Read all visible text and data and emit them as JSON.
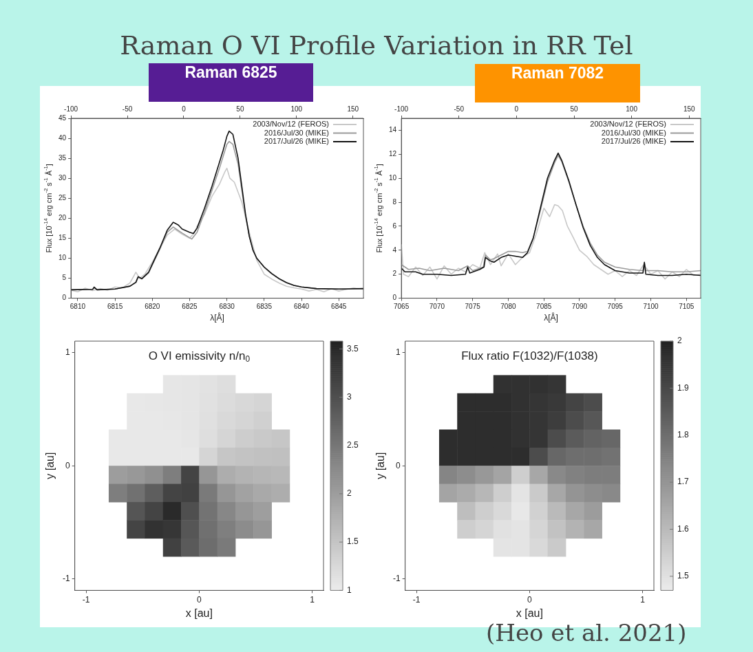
{
  "chart_data": [
    {
      "type": "line",
      "title": "Raman O VI Profile Variation in RR Tel",
      "subtitle": "Raman 6825",
      "xlabel": "λ[Å]",
      "ylabel": "Flux [10$^{-14}$ erg cm$^{-2}$ s$^{-1}$ Å$^{-1}$]",
      "legend": "top right",
      "xlim": [
        6809.1,
        6848.3
      ],
      "xticks": [
        6810,
        6815,
        6820,
        6825,
        6830,
        6835,
        6840,
        6845
      ],
      "x2lim": [
        -100,
        159.3
      ],
      "x2ticks": [
        -100,
        -50,
        0,
        50,
        100,
        150
      ],
      "ylim": [
        0,
        45
      ],
      "yticks": [
        0,
        5,
        10,
        15,
        20,
        25,
        30,
        35,
        40,
        45
      ],
      "series": [
        {
          "name": "2003/Nov/12 (FEROS)",
          "color": "#c8c8c8",
          "x": [
            6809.1,
            6810,
            6811,
            6812,
            6813,
            6814,
            6815,
            6816,
            6817,
            6817.8,
            6818.3,
            6819,
            6820,
            6821,
            6822,
            6823,
            6824,
            6825,
            6825.7,
            6826,
            6827,
            6828,
            6829,
            6829.7,
            6830,
            6830.4,
            6831,
            6832,
            6833,
            6834,
            6835,
            6836,
            6837,
            6838,
            6839,
            6840,
            6841,
            6842,
            6843,
            6844,
            6845,
            6846,
            6847,
            6848.3
          ],
          "values": [
            2.0,
            1.6,
            2.5,
            1.9,
            2.4,
            2.0,
            2.8,
            2.6,
            3.8,
            6.5,
            5.0,
            6.0,
            9,
            12.5,
            15.8,
            17.3,
            16.0,
            15.0,
            16.5,
            18,
            21,
            25.5,
            28.5,
            31.5,
            32.5,
            30,
            29,
            24,
            16.5,
            9.5,
            6.0,
            4.8,
            3.8,
            3.0,
            2.6,
            2.3,
            1.8,
            2.2,
            1.6,
            2.4,
            1.8,
            2.2,
            2.6,
            2.2
          ]
        },
        {
          "name": "2016/Jul/30 (MIKE)",
          "color": "#9a9a9a",
          "x": [
            6809.1,
            6812,
            6812.2,
            6812.6,
            6815,
            6817,
            6817.8,
            6818.1,
            6818.6,
            6819.5,
            6820,
            6821,
            6822,
            6822.8,
            6824,
            6825.3,
            6826,
            6827,
            6828,
            6829,
            6829.5,
            6830,
            6830.3,
            6830.8,
            6831.5,
            6832,
            6832.5,
            6833,
            6833.5,
            6834,
            6835,
            6836,
            6837,
            6838,
            6839,
            6840,
            6842,
            6845,
            6848.3
          ],
          "values": [
            2.1,
            2.2,
            2.6,
            2.1,
            2.3,
            3.0,
            3.9,
            5.2,
            4.8,
            6.3,
            8.3,
            12.2,
            16.5,
            17.8,
            16.3,
            14.8,
            16.5,
            21.5,
            27,
            32.5,
            35.5,
            38.5,
            39.2,
            38.5,
            33.5,
            27,
            20.5,
            15.5,
            12,
            10,
            7.7,
            6.1,
            4.8,
            3.9,
            3.2,
            2.8,
            2.4,
            2.3,
            2.4
          ]
        },
        {
          "name": "2017/Jul/26 (MIKE)",
          "color": "#111111",
          "x": [
            6809.1,
            6812,
            6812.2,
            6812.6,
            6815,
            6817,
            6817.8,
            6818.1,
            6818.6,
            6819.5,
            6820,
            6821,
            6822,
            6822.8,
            6823.5,
            6824,
            6825,
            6825.5,
            6826,
            6827,
            6828,
            6829,
            6829.5,
            6830,
            6830.3,
            6830.8,
            6831.5,
            6832,
            6832.5,
            6833,
            6833.5,
            6834,
            6835,
            6836,
            6837,
            6838,
            6839,
            6840,
            6842,
            6845,
            6848.3
          ],
          "values": [
            2.1,
            2.2,
            2.8,
            2.1,
            2.3,
            3.0,
            4.0,
            5.4,
            4.9,
            6.5,
            8.5,
            12.5,
            17,
            19,
            18.3,
            17.3,
            16.5,
            16.2,
            17.5,
            22.5,
            28,
            34,
            37,
            40.5,
            41.8,
            41,
            35,
            28,
            21,
            15.5,
            12.0,
            10.0,
            7.8,
            6.2,
            4.9,
            3.9,
            3.2,
            2.8,
            2.4,
            2.3,
            2.4
          ]
        }
      ]
    },
    {
      "type": "line",
      "subtitle": "Raman 7082",
      "xlabel": "λ[Å]",
      "ylabel": "Flux [10$^{-14}$ erg cm$^{-2}$ s$^{-1}$ Å$^{-1}$]",
      "legend": "top right",
      "xlim": [
        7065,
        7107
      ],
      "xticks": [
        7065,
        7070,
        7075,
        7080,
        7085,
        7090,
        7095,
        7100,
        7105
      ],
      "x2lim": [
        -100,
        160
      ],
      "x2ticks": [
        -100,
        -50,
        0,
        50,
        100,
        150
      ],
      "ylim": [
        0,
        15
      ],
      "yticks": [
        0,
        2,
        4,
        6,
        8,
        10,
        12,
        14
      ],
      "series": [
        {
          "name": "2003/Nov/12 (FEROS)",
          "color": "#c8c8c8",
          "x": [
            7065,
            7065.3,
            7066,
            7067,
            7068,
            7069,
            7070,
            7071,
            7072,
            7073,
            7074,
            7075,
            7076,
            7076.7,
            7077.5,
            7078.5,
            7079,
            7080,
            7081,
            7082,
            7083,
            7084,
            7085,
            7085.8,
            7086.5,
            7087,
            7087.6,
            7088.3,
            7089,
            7090,
            7091,
            7092,
            7093,
            7094,
            7095,
            7096,
            7097,
            7098,
            7099,
            7100,
            7101,
            7102,
            7103,
            7104,
            7105,
            7106,
            7107
          ],
          "values": [
            4.5,
            2.0,
            1.8,
            2.6,
            1.9,
            2.6,
            1.6,
            2.7,
            2.0,
            2.5,
            2.2,
            2.8,
            2.5,
            3.8,
            2.8,
            3.7,
            2.7,
            3.7,
            2.8,
            3.4,
            3.8,
            5.5,
            7.5,
            6.8,
            7.8,
            7.7,
            7.3,
            6.0,
            5.2,
            4.0,
            3.5,
            2.8,
            2.4,
            2.0,
            2.3,
            1.8,
            2.3,
            1.9,
            2.8,
            2.0,
            2.3,
            1.6,
            2.2,
            1.8,
            2.4,
            1.9,
            2.0
          ]
        },
        {
          "name": "2016/Jul/30 (MIKE)",
          "color": "#9a9a9a",
          "x": [
            7065,
            7066,
            7067.5,
            7069,
            7071,
            7073,
            7074.3,
            7075,
            7076.5,
            7076.8,
            7077.5,
            7078,
            7079,
            7080,
            7081,
            7082,
            7082.7,
            7083.5,
            7084.5,
            7085.5,
            7086.5,
            7087,
            7087.5,
            7088.5,
            7089.5,
            7090.5,
            7091.5,
            7092.5,
            7093.5,
            7095,
            7097,
            7098.9,
            7099.1,
            7099.3,
            7101,
            7103,
            7105,
            7107
          ],
          "values": [
            2.8,
            2.4,
            2.5,
            2.3,
            2.5,
            2.3,
            2.7,
            2.3,
            2.6,
            3.6,
            3.2,
            3.3,
            3.6,
            3.9,
            3.9,
            3.8,
            3.9,
            5.0,
            7.3,
            9.7,
            11.3,
            11.9,
            11.4,
            9.7,
            7.8,
            6.0,
            4.6,
            3.6,
            3.0,
            2.6,
            2.4,
            2.3,
            2.9,
            2.3,
            2.3,
            2.2,
            2.2,
            2.3
          ]
        },
        {
          "name": "2017/Jul/26 (MIKE)",
          "color": "#111111",
          "x": [
            7065,
            7065.5,
            7067,
            7068,
            7070,
            7072,
            7074,
            7074.3,
            7074.6,
            7076,
            7076.6,
            7076.8,
            7077.5,
            7078,
            7079,
            7080,
            7081,
            7082,
            7082.7,
            7083.5,
            7084.5,
            7085.5,
            7086.5,
            7087,
            7087.5,
            7088.5,
            7089.5,
            7090.5,
            7091.5,
            7092.5,
            7093.5,
            7095,
            7097,
            7098.9,
            7099.1,
            7099.3,
            7101,
            7103,
            7105,
            7107
          ],
          "values": [
            2.5,
            2.2,
            2.2,
            2.0,
            2.0,
            1.9,
            2.0,
            2.6,
            2.1,
            2.4,
            2.6,
            3.4,
            3.1,
            3.0,
            3.4,
            3.6,
            3.5,
            3.4,
            3.8,
            5.0,
            7.5,
            10.0,
            11.5,
            12.1,
            11.5,
            9.8,
            7.8,
            5.9,
            4.4,
            3.4,
            2.8,
            2.3,
            2.1,
            2.1,
            3.0,
            2.0,
            1.9,
            1.9,
            2.0,
            1.9
          ]
        }
      ]
    },
    {
      "type": "heatmap",
      "title": "O VI emissivity n/n$_{0}$",
      "xlabel": "x [au]",
      "ylabel": "y [au]",
      "xlim": [
        -1.1,
        1.1
      ],
      "xticks": [
        -1,
        0,
        1
      ],
      "ylim": [
        -1.1,
        1.1
      ],
      "yticks": [
        -1,
        0,
        1
      ],
      "clim": [
        1,
        3.58
      ],
      "cticks": [
        1,
        1.5,
        2,
        2.5,
        3,
        3.5
      ],
      "x": [
        -0.72,
        -0.56,
        -0.4,
        -0.24,
        -0.08,
        0.08,
        0.24,
        0.4,
        0.56,
        0.72
      ],
      "y": [
        0.72,
        0.56,
        0.4,
        0.24,
        0.08,
        -0.08,
        -0.24,
        -0.4,
        -0.56,
        -0.72
      ],
      "cells": [
        [
          null,
          null,
          null,
          1.08,
          1.09,
          1.13,
          1.18,
          null,
          null,
          null
        ],
        [
          null,
          1.05,
          1.06,
          1.08,
          1.09,
          1.14,
          1.2,
          1.26,
          1.3,
          null
        ],
        [
          null,
          1.05,
          1.05,
          1.07,
          1.09,
          1.15,
          1.24,
          1.3,
          1.36,
          null
        ],
        [
          1.05,
          1.05,
          1.05,
          1.05,
          1.08,
          1.18,
          1.3,
          1.39,
          1.45,
          1.48
        ],
        [
          1.05,
          1.05,
          1.05,
          1.05,
          1.05,
          1.3,
          1.48,
          1.52,
          1.55,
          1.56
        ],
        [
          2.01,
          2.07,
          2.18,
          2.41,
          3.15,
          2.1,
          1.8,
          1.73,
          1.69,
          1.67
        ],
        [
          2.41,
          2.57,
          2.82,
          3.15,
          3.19,
          2.45,
          2.1,
          1.94,
          1.86,
          1.8
        ],
        [
          null,
          2.93,
          3.15,
          3.48,
          3.0,
          2.55,
          2.29,
          2.1,
          1.99,
          null
        ],
        [
          null,
          3.15,
          3.37,
          3.32,
          2.92,
          2.59,
          2.39,
          2.23,
          2.1,
          null
        ],
        [
          null,
          null,
          null,
          3.19,
          2.87,
          2.62,
          2.45,
          null,
          null,
          null
        ]
      ]
    },
    {
      "type": "heatmap",
      "title": "Flux ratio F(1032)/F(1038)",
      "xlabel": "x [au]",
      "ylabel": "y [au]",
      "annotations": [
        "(Heo et al. 2021)"
      ],
      "xlim": [
        -1.1,
        1.1
      ],
      "xticks": [
        -1,
        0,
        1
      ],
      "ylim": [
        -1.1,
        1.1
      ],
      "yticks": [
        -1,
        0,
        1
      ],
      "clim": [
        1.47,
        2
      ],
      "cticks": [
        1.5,
        1.6,
        1.7,
        1.8,
        1.9,
        2
      ],
      "x": [
        -0.72,
        -0.56,
        -0.4,
        -0.24,
        -0.08,
        0.08,
        0.24,
        0.4,
        0.56,
        0.72
      ],
      "y": [
        0.72,
        0.56,
        0.4,
        0.24,
        0.08,
        -0.08,
        -0.24,
        -0.4,
        -0.56,
        -0.72
      ],
      "cells": [
        [
          null,
          null,
          null,
          1.96,
          1.96,
          1.96,
          1.95,
          null,
          null,
          null
        ],
        [
          null,
          1.97,
          1.97,
          1.97,
          1.96,
          1.95,
          1.94,
          1.91,
          1.89,
          null
        ],
        [
          null,
          1.97,
          1.97,
          1.97,
          1.96,
          1.95,
          1.93,
          1.89,
          1.86,
          null
        ],
        [
          1.97,
          1.97,
          1.97,
          1.97,
          1.96,
          1.95,
          1.89,
          1.85,
          1.83,
          1.82
        ],
        [
          1.97,
          1.97,
          1.97,
          1.97,
          1.97,
          1.89,
          1.82,
          1.8,
          1.8,
          1.79
        ],
        [
          1.74,
          1.72,
          1.69,
          1.66,
          1.55,
          1.65,
          1.73,
          1.75,
          1.76,
          1.76
        ],
        [
          1.66,
          1.64,
          1.61,
          1.55,
          1.49,
          1.56,
          1.65,
          1.7,
          1.72,
          1.73
        ],
        [
          null,
          1.59,
          1.55,
          1.52,
          1.48,
          1.54,
          1.6,
          1.65,
          1.68,
          null
        ],
        [
          null,
          1.55,
          1.53,
          1.5,
          1.49,
          1.53,
          1.58,
          1.62,
          1.65,
          null
        ],
        [
          null,
          null,
          null,
          1.49,
          1.49,
          1.52,
          1.56,
          null,
          null,
          null
        ]
      ]
    }
  ]
}
